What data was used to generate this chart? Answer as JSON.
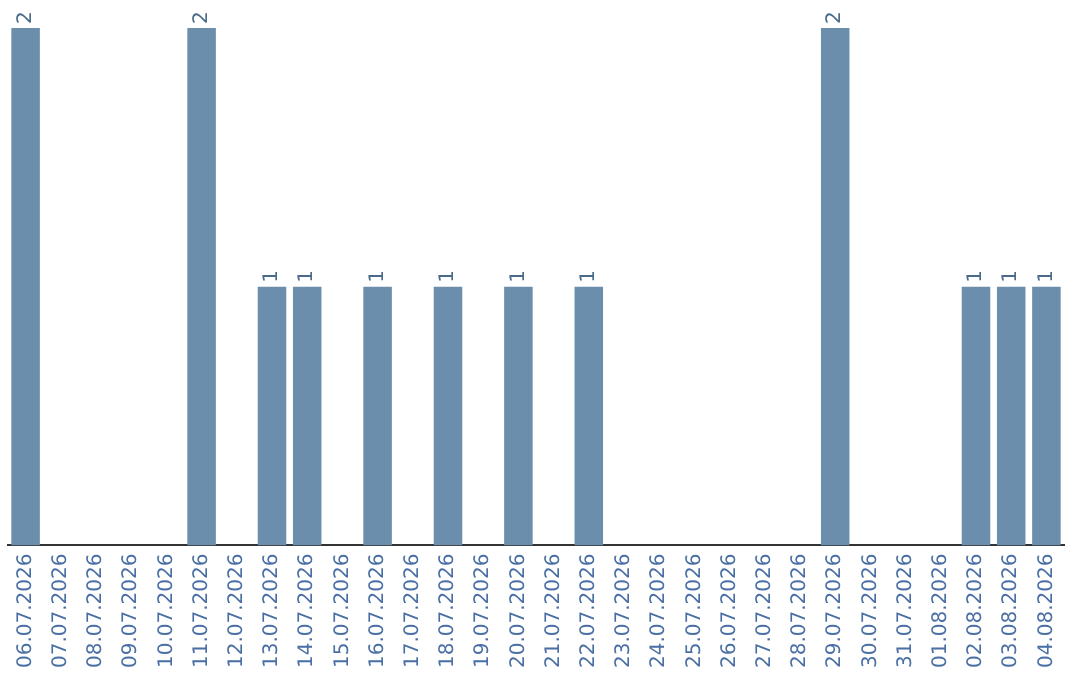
{
  "chart_data": {
    "type": "bar",
    "categories": [
      "06.07.2026",
      "07.07.2026",
      "08.07.2026",
      "09.07.2026",
      "10.07.2026",
      "11.07.2026",
      "12.07.2026",
      "13.07.2026",
      "14.07.2026",
      "15.07.2026",
      "16.07.2026",
      "17.07.2026",
      "18.07.2026",
      "19.07.2026",
      "20.07.2026",
      "21.07.2026",
      "22.07.2026",
      "23.07.2026",
      "24.07.2026",
      "25.07.2026",
      "26.07.2026",
      "27.07.2026",
      "28.07.2026",
      "29.07.2026",
      "30.07.2026",
      "31.07.2026",
      "01.08.2026",
      "02.08.2026",
      "03.08.2026",
      "04.08.2026"
    ],
    "values": [
      2,
      0,
      0,
      0,
      0,
      2,
      0,
      1,
      1,
      0,
      1,
      0,
      1,
      0,
      1,
      0,
      1,
      0,
      0,
      0,
      0,
      0,
      0,
      2,
      0,
      0,
      0,
      1,
      1,
      1
    ],
    "value_labels": [
      "2",
      null,
      null,
      null,
      null,
      "2",
      null,
      "1",
      "1",
      null,
      "1",
      null,
      "1",
      null,
      "1",
      null,
      "1",
      null,
      null,
      null,
      null,
      null,
      null,
      "2",
      null,
      null,
      null,
      "1",
      "1",
      "1"
    ],
    "color": "#6c8ead",
    "grid": false,
    "legend": false,
    "tick_labels": "x"
  }
}
